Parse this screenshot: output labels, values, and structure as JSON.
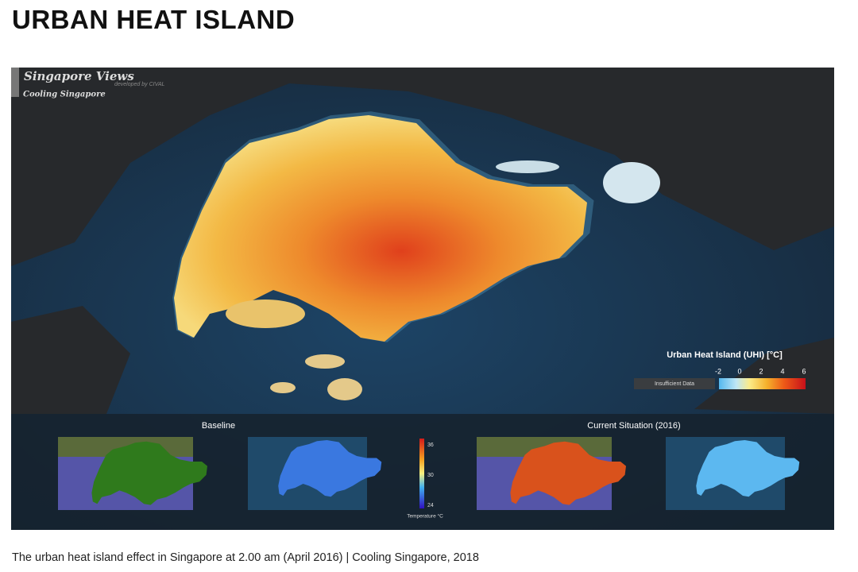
{
  "header": {
    "title": "URBAN HEAT ISLAND"
  },
  "figure": {
    "brand": "Singapore Views",
    "credit": "developed by CIVAL",
    "subtitle": "Cooling Singapore",
    "legend": {
      "title": "Urban Heat Island (UHI) [°C]",
      "ticks": [
        -2,
        0,
        2,
        4,
        6
      ],
      "missing": "Insufficient Data"
    },
    "panels": [
      {
        "label": "Baseline"
      },
      {
        "label": "Current Situation (2016)"
      }
    ],
    "colorbar": {
      "ticks": [
        36,
        30,
        24
      ],
      "label": "Temperature °C"
    }
  },
  "caption": "The urban heat island effect in Singapore at 2.00 am (April 2016) | Cooling Singapore, 2018"
}
